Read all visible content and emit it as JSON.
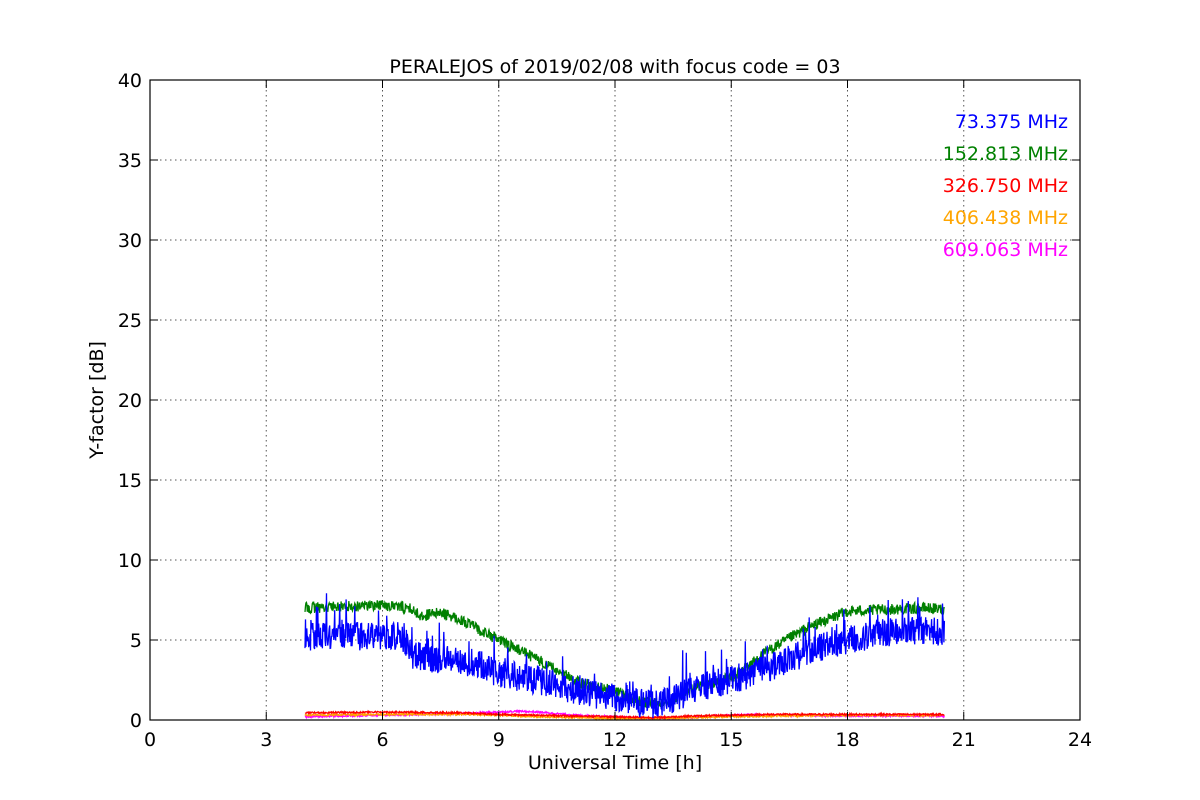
{
  "chart_data": {
    "type": "line",
    "title": "PERALEJOS of 2019/02/08 with focus code = 03",
    "xlabel": "Universal Time [h]",
    "ylabel": "Y-factor [dB]",
    "xlim": [
      0,
      24
    ],
    "ylim": [
      0,
      40
    ],
    "x_ticks": [
      0,
      3,
      6,
      9,
      12,
      15,
      18,
      21,
      24
    ],
    "y_ticks": [
      0,
      5,
      10,
      15,
      20,
      25,
      30,
      35,
      40
    ],
    "x_tick_labels": [
      "0",
      "3",
      "6",
      "9",
      "12",
      "15",
      "18",
      "21",
      "24"
    ],
    "y_tick_labels": [
      "0",
      "5",
      "10",
      "15",
      "20",
      "25",
      "30",
      "35",
      "40"
    ],
    "grid": true,
    "legend_position": "top-right",
    "series": [
      {
        "name": "73.375 MHz",
        "color": "#0000ff",
        "noise": 0.9,
        "x": [
          4.0,
          5.0,
          6.0,
          6.5,
          6.8,
          7.5,
          8.5,
          9.0,
          10.0,
          11.0,
          12.0,
          12.5,
          13.0,
          13.5,
          14.0,
          15.0,
          16.0,
          17.0,
          18.0,
          19.0,
          20.0,
          20.5
        ],
        "y": [
          5.2,
          5.2,
          5.3,
          5.2,
          4.0,
          3.8,
          3.5,
          2.9,
          2.5,
          1.8,
          1.4,
          1.1,
          1.0,
          1.2,
          2.0,
          2.5,
          3.3,
          4.3,
          5.0,
          5.5,
          5.6,
          5.5
        ]
      },
      {
        "name": "152.813 MHz",
        "color": "#008000",
        "noise": 0.35,
        "x": [
          4.0,
          5.0,
          6.0,
          6.7,
          7.0,
          7.5,
          8.0,
          9.0,
          10.0,
          11.0,
          12.0,
          12.5,
          13.0,
          13.5,
          14.0,
          15.0,
          16.0,
          17.0,
          18.0,
          19.0,
          20.0,
          20.5
        ],
        "y": [
          7.0,
          7.1,
          7.2,
          7.0,
          6.5,
          6.7,
          6.3,
          5.0,
          3.8,
          2.4,
          1.8,
          1.2,
          1.0,
          1.3,
          2.0,
          2.6,
          4.4,
          5.8,
          6.8,
          6.9,
          7.0,
          6.9
        ]
      },
      {
        "name": "326.750 MHz",
        "color": "#ff0000",
        "noise": 0.05,
        "x": [
          4.0,
          6.0,
          8.0,
          9.0,
          10.0,
          11.0,
          12.0,
          13.0,
          14.0,
          15.0,
          16.0,
          18.0,
          20.5
        ],
        "y": [
          0.45,
          0.5,
          0.45,
          0.35,
          0.3,
          0.25,
          0.2,
          0.15,
          0.25,
          0.3,
          0.35,
          0.35,
          0.35
        ]
      },
      {
        "name": "406.438 MHz",
        "color": "#ffa500",
        "noise": 0.05,
        "x": [
          4.0,
          6.0,
          8.0,
          9.0,
          10.0,
          11.0,
          12.0,
          13.0,
          14.0,
          15.0,
          16.0,
          18.0,
          20.5
        ],
        "y": [
          0.3,
          0.35,
          0.35,
          0.3,
          0.2,
          0.15,
          0.1,
          0.1,
          0.15,
          0.2,
          0.25,
          0.3,
          0.3
        ]
      },
      {
        "name": "609.063 MHz",
        "color": "#ff00ff",
        "noise": 0.05,
        "x": [
          4.0,
          6.0,
          7.0,
          8.0,
          9.0,
          9.5,
          10.0,
          11.0,
          12.0,
          13.0,
          14.0,
          15.0,
          15.5,
          16.0,
          18.0,
          20.5
        ],
        "y": [
          0.2,
          0.3,
          0.35,
          0.4,
          0.5,
          0.55,
          0.5,
          0.3,
          0.2,
          0.1,
          0.15,
          0.3,
          0.35,
          0.3,
          0.25,
          0.25
        ]
      }
    ]
  }
}
